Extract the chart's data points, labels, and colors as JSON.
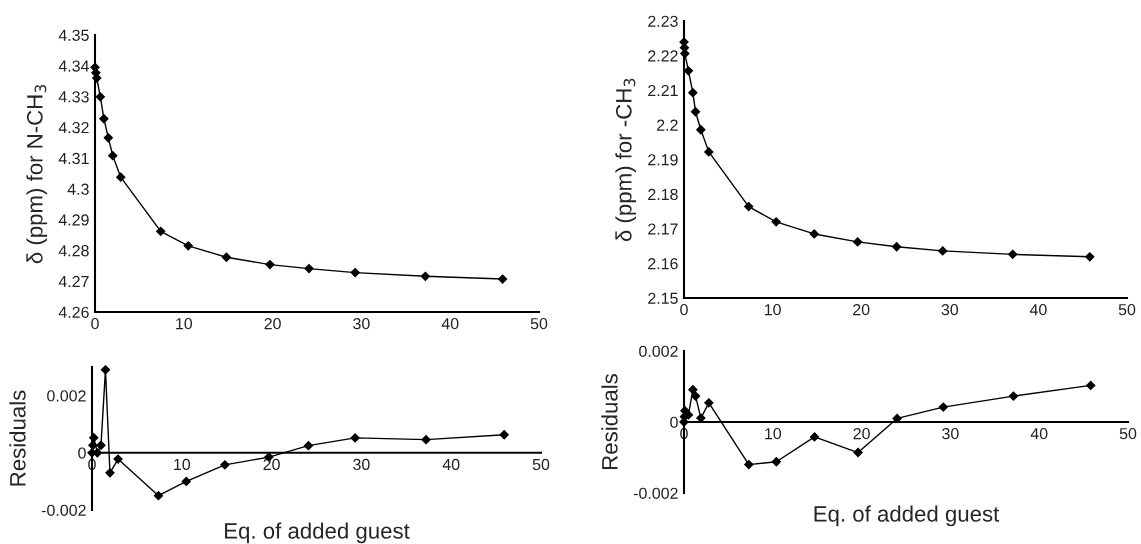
{
  "chart_data": [
    {
      "type": "line",
      "ylabel": "δ (ppm) for N-CH$_{3}$",
      "xlim": [
        0,
        50
      ],
      "xticks": [
        0,
        10,
        20,
        30,
        40,
        50
      ],
      "ylim": [
        4.26,
        4.35
      ],
      "yticks": [
        4.26,
        4.27,
        4.28,
        4.29,
        4.3,
        4.31,
        4.32,
        4.33,
        4.34,
        4.35
      ],
      "marker": "diamond",
      "line_style": "solid",
      "grid": false,
      "series": [
        {
          "color": "#000000",
          "x": [
            0,
            0.1,
            0.2,
            0.6,
            1.0,
            1.5,
            2.0,
            2.9,
            7.4,
            10.5,
            14.8,
            19.7,
            24.1,
            29.3,
            37.2,
            45.9
          ],
          "values": [
            4.3395,
            4.3377,
            4.336,
            4.3299,
            4.3228,
            4.3166,
            4.3108,
            4.3038,
            4.2862,
            4.2815,
            4.2778,
            4.2754,
            4.2741,
            4.2728,
            4.2716,
            4.2707
          ]
        }
      ]
    },
    {
      "type": "line",
      "ylabel": "Residuals",
      "xlabel": "Eq. of added guest",
      "xlim": [
        0,
        50
      ],
      "xticks": [
        0,
        10,
        20,
        30,
        40,
        50
      ],
      "ylim": [
        -0.002,
        0.003
      ],
      "yticks": [
        -0.002,
        0,
        0.002
      ],
      "marker": "diamond",
      "line_style": "solid",
      "grid": false,
      "series": [
        {
          "color": "#000000",
          "x": [
            0,
            0.1,
            0.2,
            0.6,
            1.0,
            1.5,
            2.0,
            2.9,
            7.4,
            10.5,
            14.8,
            19.7,
            24.1,
            29.3,
            37.2,
            45.9
          ],
          "values": [
            0,
            0.00026,
            0.00053,
            0,
            0.00026,
            0.0029,
            -0.0007,
            -0.00022,
            -0.0015,
            -0.001,
            -0.00042,
            -0.00015,
            0.00025,
            0.00052,
            0.00046,
            0.00063
          ]
        }
      ]
    },
    {
      "type": "line",
      "ylabel": "δ (ppm) for -CH$_{3}$",
      "xlim": [
        0,
        50
      ],
      "xticks": [
        0,
        10,
        20,
        30,
        40,
        50
      ],
      "ylim": [
        2.15,
        2.23
      ],
      "yticks": [
        2.15,
        2.16,
        2.17,
        2.18,
        2.19,
        2.2,
        2.21,
        2.22,
        2.23
      ],
      "marker": "diamond",
      "line_style": "solid",
      "grid": false,
      "series": [
        {
          "color": "#000000",
          "x": [
            0,
            0.05,
            0.1,
            0.5,
            1.0,
            1.3,
            1.9,
            2.8,
            7.3,
            10.4,
            14.7,
            19.6,
            24.0,
            29.2,
            37.1,
            45.8
          ],
          "values": [
            2.2239,
            2.2223,
            2.2206,
            2.2156,
            2.2093,
            2.2038,
            2.1986,
            2.1922,
            2.1764,
            2.172,
            2.1685,
            2.1662,
            2.1648,
            2.1636,
            2.1626,
            2.1619
          ]
        }
      ]
    },
    {
      "type": "line",
      "ylabel": "Residuals",
      "xlabel": "Eq. of added guest",
      "xlim": [
        0,
        50
      ],
      "xticks": [
        0,
        10,
        20,
        30,
        40,
        50
      ],
      "ylim": [
        -0.002,
        0.002
      ],
      "yticks": [
        -0.002,
        0,
        0.002
      ],
      "marker": "diamond",
      "line_style": "solid",
      "grid": false,
      "series": [
        {
          "color": "#000000",
          "x": [
            0,
            0.05,
            0.1,
            0.5,
            1.0,
            1.3,
            1.9,
            2.8,
            7.3,
            10.4,
            14.7,
            19.6,
            24.0,
            29.2,
            37.1,
            45.8
          ],
          "values": [
            0,
            0.00015,
            0.00032,
            0.0002,
            0.00091,
            0.00073,
            0.00011,
            0.00054,
            -0.0012,
            -0.00112,
            -0.00042,
            -0.00086,
            0.0001,
            0.00042,
            0.00073,
            0.00103
          ]
        }
      ]
    }
  ]
}
